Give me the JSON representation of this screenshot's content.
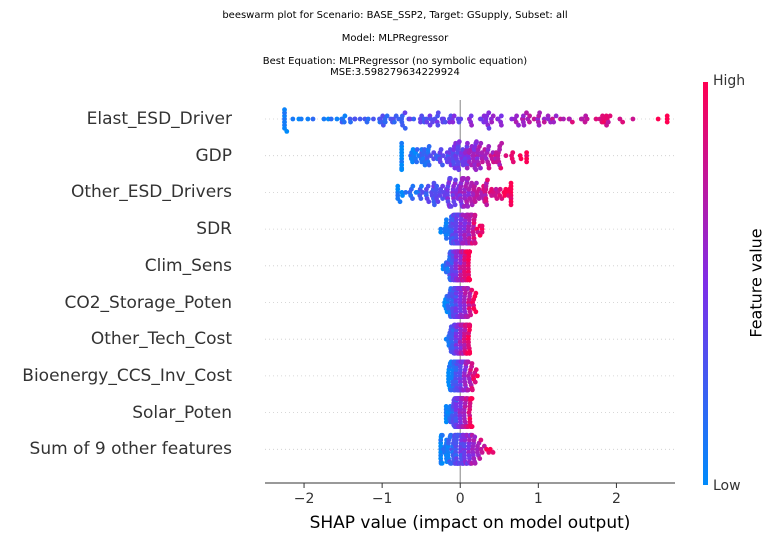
{
  "title": {
    "line1": "beeswarm plot for Scenario: BASE_SSP2, Target: GSupply, Subset: all",
    "line2": "Model: MLPRegressor",
    "line3": "Best Equation: MLPRegressor (no symbolic equation)",
    "line4": "MSE:3.598279634229924"
  },
  "chart_data": {
    "type": "scatter",
    "subtype": "beeswarm",
    "xlabel": "SHAP value (impact on model output)",
    "xlim": [
      -2.5,
      2.75
    ],
    "xticks": [
      -2,
      -1,
      0,
      1,
      2
    ],
    "xtick_labels": [
      "−2",
      "−1",
      "0",
      "1",
      "2"
    ],
    "features": [
      {
        "name": "Elast_ESD_Driver",
        "min": -2.25,
        "max": 2.65,
        "spread": 1.25
      },
      {
        "name": "GDP",
        "min": -0.75,
        "max": 0.85,
        "spread": 0.45
      },
      {
        "name": "Other_ESD_Drivers",
        "min": -0.8,
        "max": 0.65,
        "spread": 0.35
      },
      {
        "name": "SDR",
        "min": -0.25,
        "max": 0.28,
        "spread": 0.12
      },
      {
        "name": "Clim_Sens",
        "min": -0.22,
        "max": 0.12,
        "spread": 0.08
      },
      {
        "name": "CO2_Storage_Poten",
        "min": -0.2,
        "max": 0.2,
        "spread": 0.1
      },
      {
        "name": "Other_Tech_Cost",
        "min": -0.18,
        "max": 0.12,
        "spread": 0.08
      },
      {
        "name": "Bioenergy_CCS_Inv_Cost",
        "min": -0.15,
        "max": 0.22,
        "spread": 0.09
      },
      {
        "name": "Solar_Poten",
        "min": -0.18,
        "max": 0.15,
        "spread": 0.08
      },
      {
        "name": "Sum of 9 other features",
        "min": -0.25,
        "max": 0.42,
        "spread": 0.14
      }
    ],
    "colorbar": {
      "high_label": "High",
      "low_label": "Low",
      "label": "Feature value",
      "low_color": "#008bfb",
      "mid_color": "#7e2ee8",
      "high_color": "#ff0052"
    },
    "zero_line_color": "#999999",
    "row_grid": "dotted"
  }
}
